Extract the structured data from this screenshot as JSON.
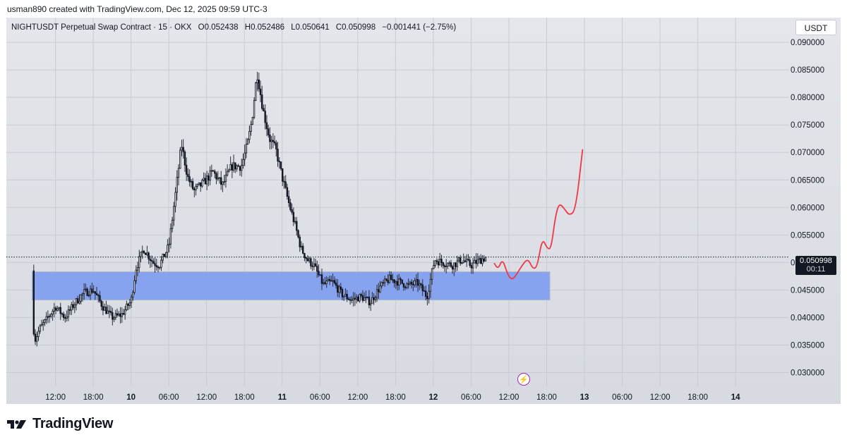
{
  "caption": "usman890 created with TradingView.com, Dec 12, 2025 09:59 UTC-3",
  "legend": {
    "symbol": "NIGHTUSDT Perpetual Swap Contract · 15 · OKX",
    "open": "O0.052438",
    "high": "H0.052486",
    "low": "L0.050641",
    "close": "C0.050998",
    "change": "−0.001441 (−2.75%)"
  },
  "currency_button": "USDT",
  "last_price": "0.050998",
  "countdown": "00:11",
  "brand": "TradingView",
  "colors": {
    "up": "#131722",
    "down": "#131722",
    "zone": "#7b9bf0",
    "projection": "#f23645",
    "background": "#dcdee4"
  },
  "chart_data": {
    "type": "candlestick",
    "title": "NIGHTUSDT Perpetual Swap Contract · 15 · OKX",
    "x_tick_labels": [
      "12:00",
      "18:00",
      "10",
      "06:00",
      "12:00",
      "18:00",
      "11",
      "06:00",
      "12:00",
      "18:00",
      "12",
      "06:00",
      "12:00",
      "18:00",
      "13",
      "06:00",
      "12:00",
      "18:00",
      "14"
    ],
    "x_tick_hours": [
      12,
      18,
      24,
      30,
      36,
      42,
      48,
      54,
      60,
      66,
      72,
      78,
      84,
      90,
      96,
      102,
      108,
      114,
      120
    ],
    "y_tick_labels": [
      "0.090000",
      "0.085000",
      "0.080000",
      "0.075000",
      "0.070000",
      "0.065000",
      "0.060000",
      "0.055000",
      "0.050000",
      "0.045000",
      "0.040000",
      "0.035000",
      "0.030000"
    ],
    "ylim": [
      0.0275,
      0.0945
    ],
    "xlim_hours": [
      4.2,
      128.5
    ],
    "path_hours": [
      8.3,
      8.6,
      9.5,
      10.5,
      12,
      13.5,
      15,
      16.5,
      18,
      19.5,
      21,
      22.5,
      24,
      24.8,
      26,
      27.5,
      28.5,
      30,
      31,
      32,
      33,
      34,
      35.5,
      37,
      38.5,
      40,
      41.5,
      42.5,
      43.2,
      44,
      45,
      46,
      47,
      48,
      49,
      50,
      51,
      52,
      53,
      54.5,
      56,
      57.5,
      59,
      60.5,
      62,
      63.5,
      65,
      66.5,
      68,
      69.5,
      71,
      72.2,
      73.5,
      75,
      76.5,
      78,
      79.5,
      80.5
    ],
    "path_close": [
      0.0485,
      0.0355,
      0.038,
      0.0395,
      0.042,
      0.04,
      0.0425,
      0.0445,
      0.045,
      0.042,
      0.04,
      0.0405,
      0.043,
      0.049,
      0.0525,
      0.05,
      0.0495,
      0.053,
      0.062,
      0.0715,
      0.0655,
      0.063,
      0.0645,
      0.0665,
      0.064,
      0.0675,
      0.0675,
      0.0715,
      0.076,
      0.0845,
      0.0775,
      0.0725,
      0.0705,
      0.0655,
      0.061,
      0.057,
      0.0525,
      0.0505,
      0.0495,
      0.046,
      0.0465,
      0.0442,
      0.0432,
      0.0438,
      0.0428,
      0.0455,
      0.047,
      0.0465,
      0.0458,
      0.0463,
      0.0438,
      0.0505,
      0.05,
      0.0495,
      0.0505,
      0.0495,
      0.0505,
      0.051
    ],
    "support_zone": {
      "x_hours": [
        8.3,
        90.5
      ],
      "price": [
        0.0432,
        0.0483
      ]
    },
    "projection_hours": [
      81.7,
      82.3,
      83,
      83.8,
      84.5,
      85.2,
      86,
      87,
      87.8,
      88.5,
      89.3,
      90.1,
      90.7,
      91.4,
      92,
      92.8,
      93.6,
      94.6,
      95.7
    ],
    "projection_price": [
      0.0498,
      0.0488,
      0.0507,
      0.0478,
      0.0468,
      0.0478,
      0.0493,
      0.0508,
      0.0488,
      0.0492,
      0.0545,
      0.0525,
      0.0525,
      0.0585,
      0.0608,
      0.0598,
      0.0585,
      0.0595,
      0.0705
    ],
    "last_price": 0.050998,
    "grid": true
  }
}
